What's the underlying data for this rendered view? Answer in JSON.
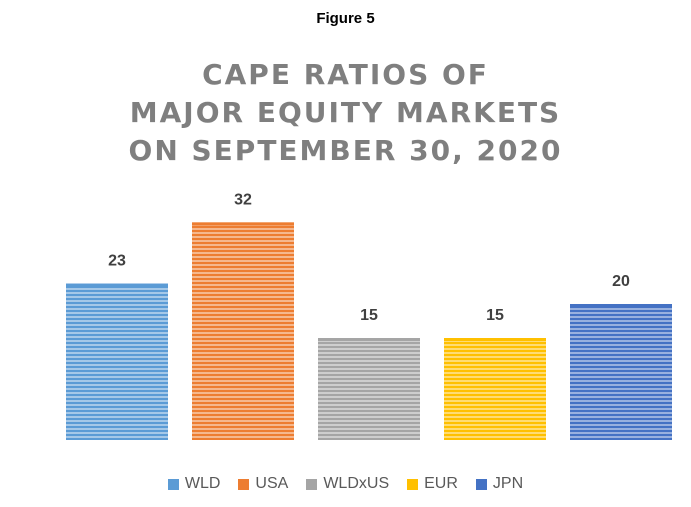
{
  "figure_label": "Figure 5",
  "chart_data": {
    "type": "bar",
    "title_lines": [
      "CAPE RATIOS OF",
      "MAJOR EQUITY MARKETS",
      "ON SEPTEMBER 30, 2020"
    ],
    "categories": [
      "WLD",
      "USA",
      "WLDxUS",
      "EUR",
      "JPN"
    ],
    "values": [
      23,
      32,
      15,
      15,
      20
    ],
    "data_labels": [
      "23",
      "32",
      "15",
      "15",
      "20"
    ],
    "colors": [
      "#5b9bd5",
      "#ed7d31",
      "#a5a5a5",
      "#ffc000",
      "#4472c4"
    ],
    "ylim": [
      0,
      32
    ],
    "grid": false,
    "legend_position": "bottom",
    "xlabel": "",
    "ylabel": ""
  }
}
